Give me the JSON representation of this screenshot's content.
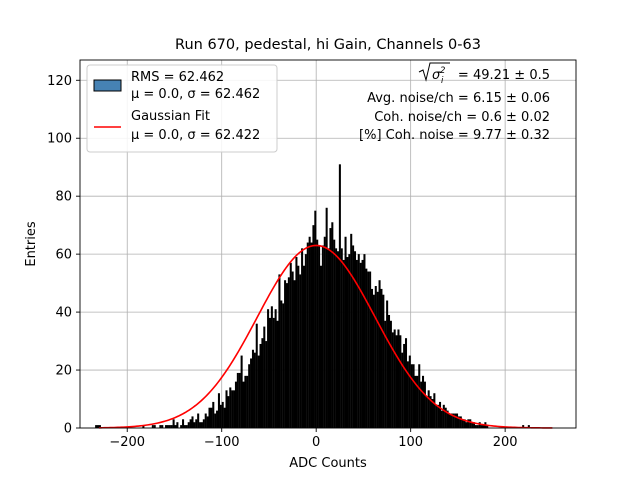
{
  "chart_data": {
    "type": "bar",
    "title": "Run 670, pedestal, hi Gain, Channels 0-63",
    "xlabel": "ADC Counts",
    "ylabel": "Entries",
    "xlim": [
      -250,
      275
    ],
    "ylim": [
      0,
      127
    ],
    "xticks": [
      -200,
      -100,
      0,
      100,
      200
    ],
    "xtick_labels": [
      "−200",
      "−100",
      "0",
      "100",
      "200"
    ],
    "yticks": [
      0,
      20,
      40,
      60,
      80,
      100,
      120
    ],
    "ytick_labels": [
      "0",
      "20",
      "40",
      "60",
      "80",
      "100",
      "120"
    ],
    "grid": true,
    "legend_placement": "upper-left",
    "histogram": {
      "bin_width": 2,
      "x_start": -234,
      "counts": [
        1,
        1,
        1,
        0,
        0,
        0,
        0,
        0,
        0,
        0,
        0,
        0,
        0,
        0,
        0,
        0,
        0,
        0,
        0,
        0,
        0,
        0,
        0,
        0,
        0,
        1,
        0,
        0,
        0,
        0,
        1,
        1,
        0,
        0,
        1,
        1,
        0,
        1,
        1,
        1,
        1,
        3,
        1,
        2,
        0,
        1,
        3,
        1,
        1,
        2,
        3,
        4,
        2,
        3,
        5,
        2,
        2,
        3,
        5,
        4,
        7,
        7,
        9,
        5,
        6,
        12,
        8,
        9,
        7,
        13,
        11,
        14,
        13,
        13,
        16,
        19,
        19,
        25,
        16,
        18,
        18,
        22,
        24,
        27,
        26,
        36,
        25,
        29,
        31,
        35,
        30,
        41,
        38,
        42,
        38,
        41,
        37,
        53,
        44,
        43,
        51,
        50,
        52,
        57,
        54,
        51,
        59,
        56,
        53,
        62,
        56,
        60,
        64,
        66,
        64,
        70,
        75,
        65,
        63,
        56,
        63,
        66,
        76,
        62,
        69,
        71,
        65,
        62,
        61,
        91,
        62,
        58,
        66,
        59,
        60,
        67,
        63,
        61,
        58,
        60,
        57,
        58,
        60,
        55,
        54,
        54,
        48,
        46,
        49,
        47,
        51,
        48,
        46,
        37,
        44,
        39,
        37,
        33,
        34,
        32,
        34,
        32,
        26,
        29,
        31,
        23,
        25,
        22,
        22,
        18,
        18,
        22,
        16,
        18,
        16,
        11,
        13,
        11,
        10,
        12,
        8,
        8,
        9,
        6,
        8,
        7,
        6,
        5,
        5,
        5,
        5,
        5,
        4,
        4,
        3,
        3,
        2,
        3,
        3,
        2,
        2,
        1,
        1,
        2,
        1,
        1,
        2,
        1,
        0,
        0,
        0,
        0,
        0,
        0,
        0,
        0,
        0,
        0,
        0,
        0,
        0,
        0,
        0,
        0,
        0,
        0,
        1,
        0,
        0,
        1
      ]
    },
    "fit": {
      "type": "gaussian",
      "mu": 0.0,
      "sigma": 62.422,
      "amplitude": 63
    },
    "series": [
      {
        "name_line1": "RMS = 62.462",
        "name_line2": "μ = 0.0, σ = 62.462",
        "color": "#4682b4",
        "edge": "#000000"
      },
      {
        "name_line1": "Gaussian Fit",
        "name_line2": "μ = 0.0, σ = 62.422",
        "color": "#ff0000"
      }
    ],
    "annotations": {
      "sigma_value": " = 49.21 ± 0.5",
      "avg_noise": "Avg. noise/ch = 6.15 ± 0.06",
      "coh_noise": "Coh. noise/ch = 0.6 ± 0.02",
      "pct_coh_noise": "[%] Coh. noise = 9.77 ± 0.32"
    },
    "colors": {
      "bars": "#000000",
      "fit": "#ff0000",
      "grid": "#b0b0b0"
    }
  }
}
